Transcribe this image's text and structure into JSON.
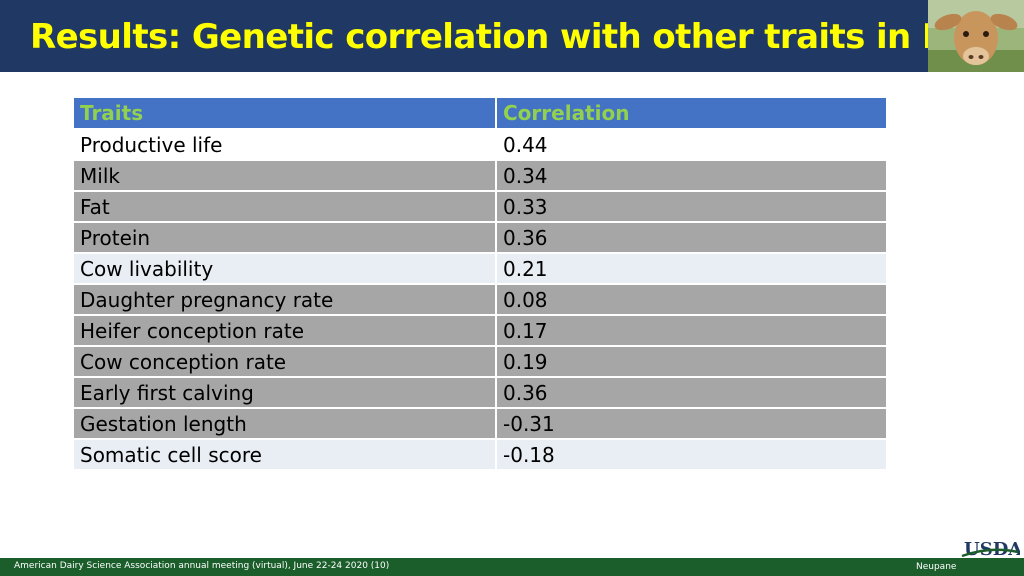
{
  "slide": {
    "title": "Results: Genetic correlation with other traits in HO",
    "footer": "American Dairy Science Association annual meeting (virtual), June 22-24 2020 (10)",
    "author": "Neupane",
    "logo_text": "USDA",
    "header_image": "calf-photo"
  },
  "table": {
    "headers": [
      "Traits",
      "Correlation"
    ],
    "rows": [
      {
        "trait": "Productive life",
        "value": "0.44"
      },
      {
        "trait": "Milk",
        "value": "0.34"
      },
      {
        "trait": "Fat",
        "value": "0.33"
      },
      {
        "trait": "Protein",
        "value": "0.36"
      },
      {
        "trait": "Cow livability",
        "value": "0.21"
      },
      {
        "trait": "Daughter pregnancy rate",
        "value": "0.08"
      },
      {
        "trait": "Heifer conception rate",
        "value": "0.17"
      },
      {
        "trait": "Cow conception rate",
        "value": "0.19"
      },
      {
        "trait": "Early first calving",
        "value": "0.36"
      },
      {
        "trait": "Gestation length",
        "value": "-0.31"
      },
      {
        "trait": "Somatic cell score",
        "value": "-0.18"
      }
    ]
  },
  "colors": {
    "header_bg": "#1f3864",
    "title": "#ffff00",
    "table_header_bg": "#4472c4",
    "table_header_text": "#92d050",
    "footer_bg": "#1b5e2b"
  }
}
